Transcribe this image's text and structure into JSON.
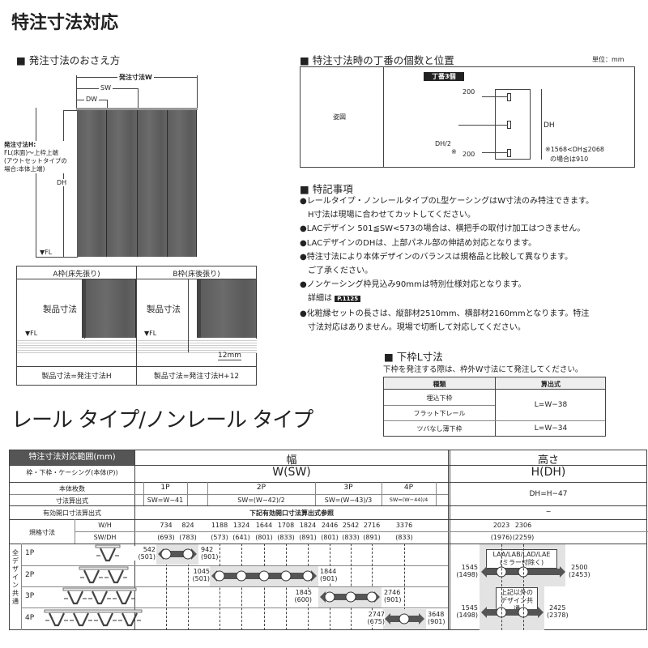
{
  "title": "特注寸法対応",
  "order_dims": {
    "heading": "■ 発注寸法のおさえ方",
    "w_label": "発注寸法W",
    "sw_label": "SW",
    "dw_label": "DW",
    "dh_label": "DH",
    "fl_label": "▼FL",
    "h_label": "発注寸法H:",
    "h_note1": "FL(床面)～上枠上端",
    "h_note2": "(アウトセットタイプの",
    "h_note3": "場合:本体上端)",
    "frame_a": {
      "header": "A枠(床先張り)",
      "product_label": "製品寸法",
      "fl": "▼FL",
      "formula": "製品寸法=発注寸法H"
    },
    "frame_b": {
      "header": "B枠(床後張り)",
      "product_label": "製品寸法",
      "fl": "▼FL",
      "offset": "12mm",
      "formula": "製品寸法=発注寸法H+12"
    }
  },
  "hinge": {
    "heading": "■ 特注寸法時の丁番の個数と位置",
    "unit": "単位：mm",
    "row_label": "姿図",
    "badge": "丁番3個",
    "top": "200",
    "bottom": "200",
    "mid": "DH/2",
    "mid_note": "※",
    "dh": "DH",
    "note1": "※1568<DH≦2068",
    "note2": "の場合は910"
  },
  "notes": {
    "heading": "■ 特記事項",
    "lines": [
      "●レールタイプ・ノンレールタイプのL型ケーシングはW寸法のみ特注できます。",
      "　H寸法は現場に合わせてカットしてください。",
      "●LACデザイン 501≦SW<573の場合は、横把手の取付け加工はつきません。",
      "●LACデザインのDHは、上部パネル部の伸詰め対応となります。",
      "●特注寸法により本体デザインのバランスは規格品と比較して異なります。",
      "　ご了承ください。",
      "●ノンケーシング枠見込み90mmは特別仕様対応となります。",
      "　詳細は",
      "●化粧縁セットの長さは、縦部材2510mm、横部材2160mmとなります。特注",
      "　寸法対応はありません。現場で切断して対応してください。"
    ],
    "page_ref": "P.1125"
  },
  "lower_frame": {
    "heading": "■ 下枠L寸法",
    "subtitle": "下枠を発注する際は、枠外W寸法にて発注してください。",
    "headers": [
      "種類",
      "算出式"
    ],
    "rows": [
      {
        "type": "埋込下枠"
      },
      {
        "type": "フラット下レール"
      },
      {
        "type": "ツバなし薄下枠"
      }
    ],
    "formula_1": "L=W−38",
    "formula_2": "L=W−34"
  },
  "subtitle": "レール タイプ/ノンレール タイプ",
  "range_table": {
    "title": "特注寸法対応範囲(mm)",
    "width_head": "幅",
    "height_head": "高さ",
    "row_frame": "枠・下枠・ケーシング(本体(P))",
    "w_sw": "W(SW)",
    "h_dh": "H(DH)",
    "row_count": "本体枚数",
    "counts": [
      "1P",
      "2P",
      "3P",
      "4P"
    ],
    "row_formula": "寸法算出式",
    "formulas": [
      "SW=W−41",
      "SW=(W−42)/2",
      "SW=(W−43)/3",
      "SW=(W−44)/4"
    ],
    "h_formula": "DH=H−47",
    "row_opening": "有効開口寸法算出式",
    "opening_w": "下記有効開口寸法算出式参照",
    "opening_h": "−",
    "row_std": "規格寸法",
    "wh": "W/H",
    "swdh": "SW/DH",
    "std_w": [
      "734",
      "824",
      "1188",
      "1324",
      "1644",
      "1708",
      "1824",
      "2446",
      "2542",
      "2716",
      "3376"
    ],
    "std_sw": [
      "(693)",
      "(783)",
      "(573)",
      "(641)",
      "(801)",
      "(833)",
      "(891)",
      "(801)",
      "(833)",
      "(891)",
      "(833)"
    ],
    "std_h": [
      "2023",
      "2306"
    ],
    "std_dh": [
      "(1976)",
      "(2259)"
    ],
    "common_label": "全デザイン共通",
    "panels": [
      {
        "label": "1P",
        "min": "542",
        "min_sw": "(501)",
        "max": "942",
        "max_sw": "(901)"
      },
      {
        "label": "2P",
        "min": "1045",
        "min_sw": "(501)",
        "max": "1844",
        "max_sw": "(901)"
      },
      {
        "label": "3P",
        "min": "1845",
        "min_sw": "(600)",
        "max": "2746",
        "max_sw": "(901)"
      },
      {
        "label": "4P",
        "min": "2747",
        "min_sw": "(675)",
        "max": "3648",
        "max_sw": "(901)"
      }
    ],
    "height_ranges": [
      {
        "tag1": "LAA/LAB/LAD/LAE",
        "tag2": "(ミラー付除く)",
        "min": "1545",
        "min_dh": "(1498)",
        "max": "2500",
        "max_dh": "(2453)"
      },
      {
        "tag1": "上記以外の",
        "tag2": "デザイン共通",
        "min": "1545",
        "min_dh": "(1498)",
        "max": "2425",
        "max_dh": "(2378)"
      }
    ]
  },
  "colors": {
    "dark_header": "#555555",
    "door": "#5f5f5f",
    "range_band": "#e3e3e3"
  }
}
